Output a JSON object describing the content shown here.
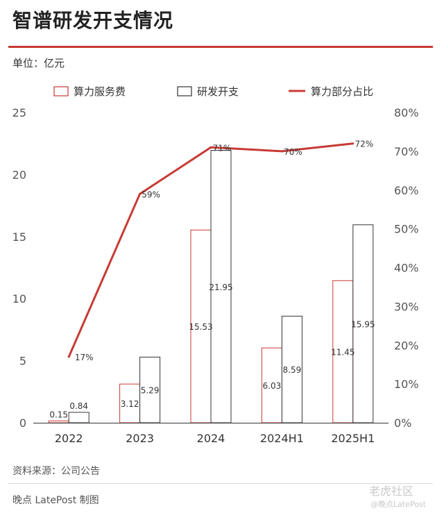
{
  "page": {
    "title": "智谱研发开支情况",
    "unit": "单位：亿元",
    "source": "资料来源：公司公告",
    "credit": "晚点 LatePost 制图",
    "watermark_main": "老虎社区",
    "watermark_sub": "@晚点LatePost"
  },
  "colors": {
    "accent": "#c73a34",
    "bar_outline": "#333333",
    "axis_text": "#555555"
  },
  "chart_data": {
    "type": "bar",
    "title": "智谱研发开支情况",
    "categories": [
      "2022",
      "2023",
      "2024",
      "2024H1",
      "2025H1"
    ],
    "series": [
      {
        "name": "算力服务费",
        "kind": "bar",
        "axis": "left",
        "values": [
          0.15,
          3.12,
          15.53,
          6.03,
          11.45
        ],
        "labels": [
          "0.15",
          "3.12",
          "15.53",
          "6.03",
          "11.45"
        ]
      },
      {
        "name": "研发开支",
        "kind": "bar",
        "axis": "left",
        "values": [
          0.84,
          5.29,
          21.95,
          8.59,
          15.95
        ],
        "labels": [
          "0.84",
          "5.29",
          "21.95",
          "8.59",
          "15.95"
        ]
      },
      {
        "name": "算力部分占比",
        "kind": "line",
        "axis": "right",
        "values": [
          17,
          59,
          71,
          70,
          72
        ],
        "labels": [
          "17%",
          "59%",
          "71%",
          "70%",
          "72%"
        ]
      }
    ],
    "ylim": [
      0,
      25
    ],
    "yticks": [
      "0",
      "5",
      "10",
      "15",
      "20",
      "25"
    ],
    "y2lim": [
      0,
      80
    ],
    "y2ticks": [
      "0%",
      "10%",
      "20%",
      "30%",
      "40%",
      "50%",
      "60%",
      "70%",
      "80%"
    ],
    "legend_position": "top",
    "grid": false
  }
}
